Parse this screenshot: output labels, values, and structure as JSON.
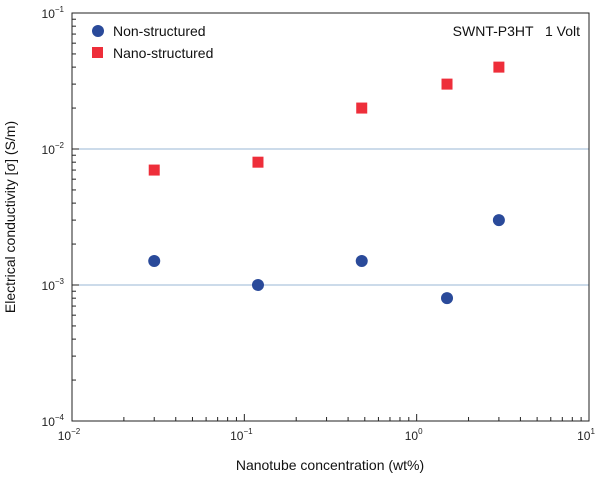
{
  "chart_data": {
    "type": "scatter",
    "xlabel": "Nanotube concentration (wt%)",
    "ylabel": "Electrical conductivity [σ] (S/m)",
    "xscale": "log",
    "yscale": "log",
    "xlim": [
      0.01,
      10
    ],
    "ylim": [
      0.0001,
      0.1
    ],
    "x_ticks": [
      {
        "base": "10",
        "exp": "−2",
        "value": 0.01
      },
      {
        "base": "10",
        "exp": "−1",
        "value": 0.1
      },
      {
        "base": "10",
        "exp": "0",
        "value": 1
      },
      {
        "base": "10",
        "exp": "1",
        "value": 10
      }
    ],
    "y_ticks": [
      {
        "base": "10",
        "exp": "−4",
        "value": 0.0001
      },
      {
        "base": "10",
        "exp": "−3",
        "value": 0.001
      },
      {
        "base": "10",
        "exp": "−2",
        "value": 0.01
      },
      {
        "base": "10",
        "exp": "−1",
        "value": 0.1
      }
    ],
    "grid": "horizontal at major y ticks",
    "legend_position": "top-left",
    "annotation": "SWNT-P3HT   1 Volt",
    "series": [
      {
        "name": "Non-structured",
        "marker": "circle",
        "color": "#2a4a9a",
        "points": [
          {
            "x": 0.03,
            "y": 0.0015
          },
          {
            "x": 0.12,
            "y": 0.001
          },
          {
            "x": 0.48,
            "y": 0.0015
          },
          {
            "x": 1.5,
            "y": 0.0008
          },
          {
            "x": 3.0,
            "y": 0.003
          }
        ]
      },
      {
        "name": "Nano-structured",
        "marker": "square",
        "color": "#ee2e3a",
        "points": [
          {
            "x": 0.03,
            "y": 0.007
          },
          {
            "x": 0.12,
            "y": 0.008
          },
          {
            "x": 0.48,
            "y": 0.02
          },
          {
            "x": 1.5,
            "y": 0.03
          },
          {
            "x": 3.0,
            "y": 0.04
          }
        ]
      }
    ]
  },
  "colors": {
    "gridline": "#9ab7d6",
    "axis": "#222222"
  }
}
